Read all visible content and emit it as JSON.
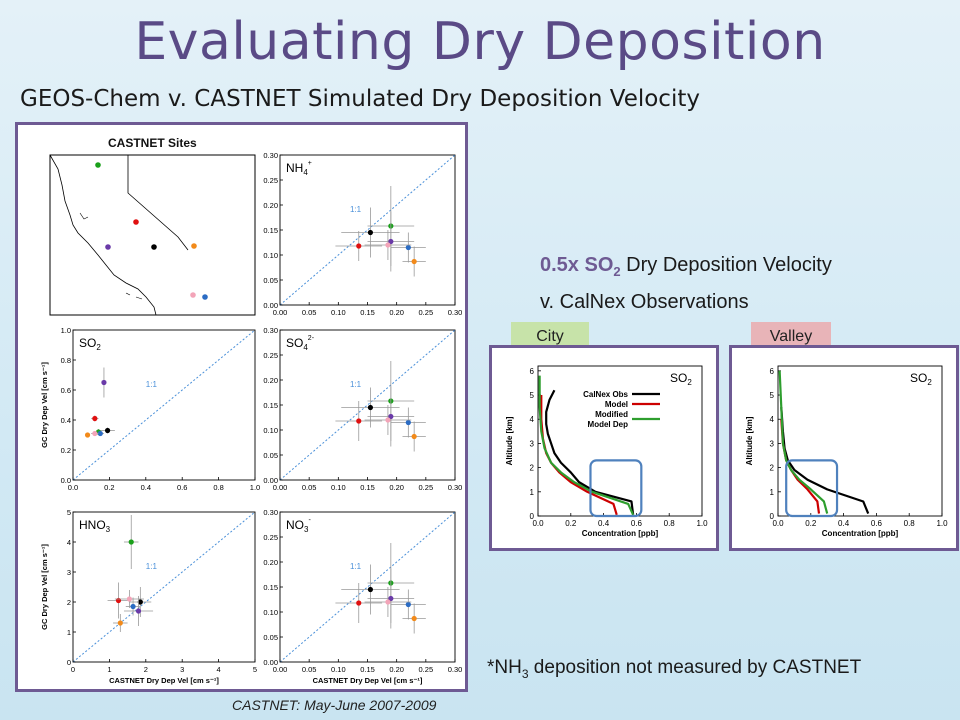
{
  "title": "Evaluating Dry Deposition",
  "subtitle": "GEOS-Chem v. CASTNET Simulated Dry Deposition Velocity",
  "map_title": "CASTNET Sites",
  "footnote_left": "CASTNET: May-June 2007-2009",
  "right_heading": {
    "line1_prefix": "0.5x SO",
    "line1_sub": "2",
    "line1_suffix": " Dry Deposition Velocity",
    "line2": "v. CalNex Observations"
  },
  "tags": {
    "city": "City",
    "valley": "Valley"
  },
  "footnote_right": {
    "prefix": "*NH",
    "sub": "3",
    "suffix": " deposition not measured by CASTNET"
  },
  "colors": {
    "accent": "#6e5a93",
    "title": "#5a4a86",
    "obs": "#000000",
    "model": "#cc0000",
    "modified": "#2e9e2e",
    "one_to_one": "#4a90d9"
  },
  "sites": [
    {
      "name": "black",
      "color": "#000000"
    },
    {
      "name": "red",
      "color": "#e01010"
    },
    {
      "name": "green",
      "color": "#1aa01a"
    },
    {
      "name": "purple",
      "color": "#6a3aa8"
    },
    {
      "name": "blue",
      "color": "#2b6cc4"
    },
    {
      "name": "pink",
      "color": "#f3a4b8"
    },
    {
      "name": "orange",
      "color": "#f28a1a"
    }
  ],
  "chart_data": [
    {
      "type": "scatter",
      "id": "nh4",
      "label": "NH",
      "label_sub": "4",
      "label_sup": "+",
      "one_to_one_label": "1:1",
      "xlim": [
        0,
        0.3
      ],
      "ylim": [
        0,
        0.3
      ],
      "xticks": [
        "0.00",
        "0.05",
        "0.10",
        "0.15",
        "0.20",
        "0.25",
        "0.30"
      ],
      "yticks": [
        "0.00",
        "0.05",
        "0.10",
        "0.15",
        "0.20",
        "0.25",
        "0.30"
      ],
      "points": [
        {
          "site": "black",
          "x": 0.155,
          "y": 0.145,
          "xerr": 0.05,
          "yerr": 0.05
        },
        {
          "site": "red",
          "x": 0.135,
          "y": 0.118,
          "xerr": 0.04,
          "yerr": 0.03
        },
        {
          "site": "green",
          "x": 0.19,
          "y": 0.158,
          "xerr": 0.04,
          "yerr": 0.08
        },
        {
          "site": "purple",
          "x": 0.19,
          "y": 0.127,
          "xerr": 0.04,
          "yerr": 0.06
        },
        {
          "site": "blue",
          "x": 0.22,
          "y": 0.115,
          "xerr": 0.03,
          "yerr": 0.03
        },
        {
          "site": "pink",
          "x": 0.185,
          "y": 0.12,
          "xerr": 0.04,
          "yerr": 0.03
        },
        {
          "site": "orange",
          "x": 0.23,
          "y": 0.087,
          "xerr": 0.02,
          "yerr": 0.03
        }
      ]
    },
    {
      "type": "scatter",
      "id": "so2",
      "label": "SO",
      "label_sub": "2",
      "label_sup": "",
      "one_to_one_label": "1:1",
      "xlim": [
        0,
        1.0
      ],
      "ylim": [
        0,
        1.0
      ],
      "xticks": [
        "0.0",
        "0.2",
        "0.4",
        "0.6",
        "0.8",
        "1.0"
      ],
      "yticks": [
        "0.0",
        "0.2",
        "0.4",
        "0.6",
        "0.8",
        "1.0"
      ],
      "ylabel": "GC Dry Dep Vel [cm s⁻¹]",
      "points": [
        {
          "site": "black",
          "x": 0.19,
          "y": 0.33,
          "xerr": 0.04,
          "yerr": 0.02
        },
        {
          "site": "red",
          "x": 0.12,
          "y": 0.41,
          "xerr": 0.02,
          "yerr": 0.02
        },
        {
          "site": "green",
          "x": 0.14,
          "y": 0.32,
          "xerr": 0.02,
          "yerr": 0.02
        },
        {
          "site": "purple",
          "x": 0.17,
          "y": 0.65,
          "xerr": 0.01,
          "yerr": 0.1
        },
        {
          "site": "blue",
          "x": 0.15,
          "y": 0.31,
          "xerr": 0.02,
          "yerr": 0.01
        },
        {
          "site": "pink",
          "x": 0.12,
          "y": 0.31,
          "xerr": 0.02,
          "yerr": 0.01
        },
        {
          "site": "orange",
          "x": 0.08,
          "y": 0.3,
          "xerr": 0.01,
          "yerr": 0.01
        }
      ]
    },
    {
      "type": "scatter",
      "id": "so4",
      "label": "SO",
      "label_sub": "4",
      "label_sup": "2-",
      "one_to_one_label": "1:1",
      "xlim": [
        0,
        0.3
      ],
      "ylim": [
        0,
        0.3
      ],
      "xticks": [
        "0.00",
        "0.05",
        "0.10",
        "0.15",
        "0.20",
        "0.25",
        "0.30"
      ],
      "yticks": [
        "0.00",
        "0.05",
        "0.10",
        "0.15",
        "0.20",
        "0.25",
        "0.30"
      ],
      "points": [
        {
          "site": "black",
          "x": 0.155,
          "y": 0.145,
          "xerr": 0.05,
          "yerr": 0.04
        },
        {
          "site": "red",
          "x": 0.135,
          "y": 0.118,
          "xerr": 0.04,
          "yerr": 0.04
        },
        {
          "site": "green",
          "x": 0.19,
          "y": 0.158,
          "xerr": 0.04,
          "yerr": 0.08
        },
        {
          "site": "purple",
          "x": 0.19,
          "y": 0.127,
          "xerr": 0.04,
          "yerr": 0.06
        },
        {
          "site": "blue",
          "x": 0.22,
          "y": 0.115,
          "xerr": 0.03,
          "yerr": 0.03
        },
        {
          "site": "pink",
          "x": 0.185,
          "y": 0.12,
          "xerr": 0.04,
          "yerr": 0.03
        },
        {
          "site": "orange",
          "x": 0.23,
          "y": 0.087,
          "xerr": 0.02,
          "yerr": 0.03
        }
      ]
    },
    {
      "type": "scatter",
      "id": "hno3",
      "label": "HNO",
      "label_sub": "3",
      "label_sup": "",
      "one_to_one_label": "1:1",
      "xlim": [
        0,
        5
      ],
      "ylim": [
        0,
        5
      ],
      "xticks": [
        "0",
        "1",
        "2",
        "3",
        "4",
        "5"
      ],
      "yticks": [
        "0",
        "1",
        "2",
        "3",
        "4",
        "5"
      ],
      "xlabel": "CASTNET Dry Dep Vel [cm s⁻¹]",
      "ylabel": "GC Dry Dep Vel [cm s⁻¹]",
      "points": [
        {
          "site": "black",
          "x": 1.85,
          "y": 2.0,
          "xerr": 0.3,
          "yerr": 0.5
        },
        {
          "site": "red",
          "x": 1.25,
          "y": 2.05,
          "xerr": 0.3,
          "yerr": 0.6
        },
        {
          "site": "green",
          "x": 1.6,
          "y": 4.0,
          "xerr": 0.2,
          "yerr": 0.9
        },
        {
          "site": "purple",
          "x": 1.8,
          "y": 1.7,
          "xerr": 0.4,
          "yerr": 0.5
        },
        {
          "site": "blue",
          "x": 1.65,
          "y": 1.85,
          "xerr": 0.2,
          "yerr": 0.3
        },
        {
          "site": "pink",
          "x": 1.55,
          "y": 2.1,
          "xerr": 0.4,
          "yerr": 0.3
        },
        {
          "site": "orange",
          "x": 1.3,
          "y": 1.3,
          "xerr": 0.2,
          "yerr": 0.3
        }
      ]
    },
    {
      "type": "scatter",
      "id": "no3",
      "label": "NO",
      "label_sub": "3",
      "label_sup": "-",
      "one_to_one_label": "1:1",
      "xlim": [
        0,
        0.3
      ],
      "ylim": [
        0,
        0.3
      ],
      "xticks": [
        "0.00",
        "0.05",
        "0.10",
        "0.15",
        "0.20",
        "0.25",
        "0.30"
      ],
      "yticks": [
        "0.00",
        "0.05",
        "0.10",
        "0.15",
        "0.20",
        "0.25",
        "0.30"
      ],
      "xlabel": "CASTNET Dry Dep Vel [cm s⁻¹]",
      "points": [
        {
          "site": "black",
          "x": 0.155,
          "y": 0.145,
          "xerr": 0.05,
          "yerr": 0.05
        },
        {
          "site": "red",
          "x": 0.135,
          "y": 0.118,
          "xerr": 0.04,
          "yerr": 0.04
        },
        {
          "site": "green",
          "x": 0.19,
          "y": 0.158,
          "xerr": 0.04,
          "yerr": 0.08
        },
        {
          "site": "purple",
          "x": 0.19,
          "y": 0.127,
          "xerr": 0.04,
          "yerr": 0.06
        },
        {
          "site": "blue",
          "x": 0.22,
          "y": 0.115,
          "xerr": 0.03,
          "yerr": 0.03
        },
        {
          "site": "pink",
          "x": 0.185,
          "y": 0.12,
          "xerr": 0.04,
          "yerr": 0.03
        },
        {
          "site": "orange",
          "x": 0.23,
          "y": 0.087,
          "xerr": 0.02,
          "yerr": 0.03
        }
      ]
    },
    {
      "type": "line",
      "id": "city_profile",
      "label": "SO",
      "label_sub": "2",
      "xlabel": "Concentration [ppb]",
      "ylabel": "Altitude [km]",
      "xlim": [
        0,
        1.0
      ],
      "ylim": [
        0,
        6.2
      ],
      "xticks": [
        "0.0",
        "0.2",
        "0.4",
        "0.6",
        "0.8",
        "1.0"
      ],
      "yticks": [
        "0",
        "1",
        "2",
        "3",
        "4",
        "5",
        "6"
      ],
      "legend": [
        "CalNex Obs",
        "Model",
        "Modified",
        "Model Dep"
      ],
      "series": [
        {
          "name": "CalNex Obs",
          "color": "#000000",
          "x": [
            0.58,
            0.57,
            0.35,
            0.25,
            0.2,
            0.14,
            0.1,
            0.08,
            0.06,
            0.05,
            0.05,
            0.07,
            0.1
          ],
          "y": [
            0.05,
            0.6,
            1.0,
            1.4,
            1.8,
            2.2,
            2.6,
            3.0,
            3.4,
            3.8,
            4.3,
            4.8,
            5.2
          ]
        },
        {
          "name": "Model",
          "color": "#cc0000",
          "x": [
            0.48,
            0.46,
            0.3,
            0.2,
            0.13,
            0.08,
            0.05,
            0.03,
            0.02,
            0.02
          ],
          "y": [
            0.05,
            0.5,
            1.0,
            1.4,
            1.8,
            2.2,
            2.6,
            3.2,
            4.0,
            5.0
          ]
        },
        {
          "name": "Modified Model Dep",
          "color": "#2e9e2e",
          "x": [
            0.58,
            0.55,
            0.33,
            0.22,
            0.14,
            0.08,
            0.04,
            0.02,
            0.01,
            0.01
          ],
          "y": [
            0.05,
            0.5,
            1.0,
            1.4,
            1.8,
            2.2,
            2.8,
            3.5,
            4.5,
            5.8
          ]
        }
      ],
      "highlight": {
        "x": [
          0.32,
          0.63
        ],
        "y": [
          0.0,
          2.3
        ]
      }
    },
    {
      "type": "line",
      "id": "valley_profile",
      "label": "SO",
      "label_sub": "2",
      "xlabel": "Concentration [ppb]",
      "ylabel": "Altitude [km]",
      "xlim": [
        0,
        1.0
      ],
      "ylim": [
        0,
        6.2
      ],
      "xticks": [
        "0.0",
        "0.2",
        "0.4",
        "0.6",
        "0.8",
        "1.0"
      ],
      "yticks": [
        "0",
        "1",
        "2",
        "3",
        "4",
        "5",
        "6"
      ],
      "series": [
        {
          "name": "CalNex Obs",
          "color": "#000000",
          "x": [
            0.55,
            0.52,
            0.3,
            0.18,
            0.1,
            0.06,
            0.04,
            0.03,
            0.02
          ],
          "y": [
            0.1,
            0.6,
            1.1,
            1.5,
            1.9,
            2.3,
            2.8,
            3.5,
            4.5
          ]
        },
        {
          "name": "Model",
          "color": "#cc0000",
          "x": [
            0.25,
            0.24,
            0.18,
            0.12,
            0.08,
            0.05,
            0.03,
            0.02
          ],
          "y": [
            0.1,
            0.6,
            1.1,
            1.5,
            1.9,
            2.3,
            3.0,
            4.0
          ]
        },
        {
          "name": "Modified Model Dep",
          "color": "#2e9e2e",
          "x": [
            0.3,
            0.28,
            0.2,
            0.13,
            0.08,
            0.05,
            0.03,
            0.02,
            0.01
          ],
          "y": [
            0.1,
            0.6,
            1.1,
            1.5,
            1.9,
            2.3,
            3.0,
            4.5,
            6.0
          ]
        }
      ],
      "highlight": {
        "x": [
          0.05,
          0.36
        ],
        "y": [
          0.0,
          2.3
        ]
      }
    }
  ]
}
